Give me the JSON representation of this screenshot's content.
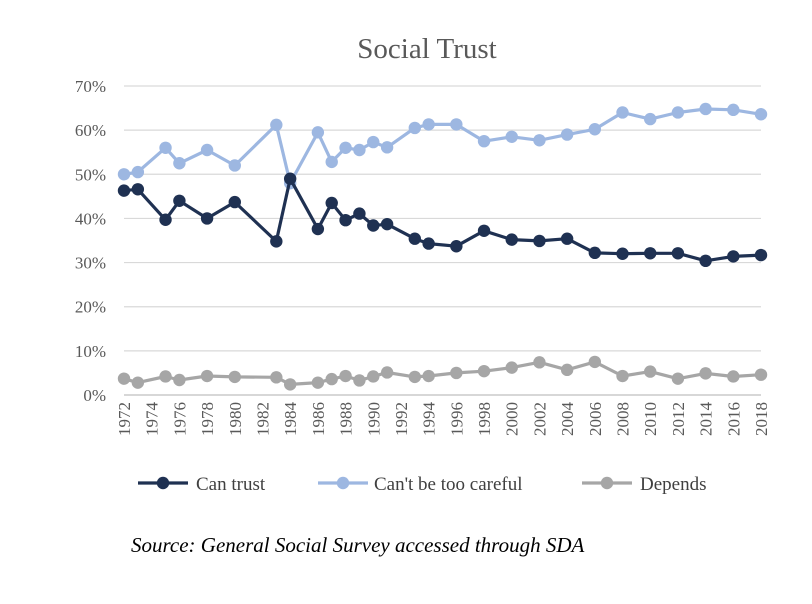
{
  "chart_data": {
    "type": "line",
    "title": "Social Trust",
    "xlabel": "",
    "ylabel": "",
    "x_ticks": [
      "1972",
      "1974",
      "1976",
      "1978",
      "1980",
      "1982",
      "1984",
      "1986",
      "1988",
      "1990",
      "1992",
      "1994",
      "1996",
      "1998",
      "2000",
      "2002",
      "2004",
      "2006",
      "2008",
      "2010",
      "2012",
      "2014",
      "2016",
      "2018"
    ],
    "x_range": [
      1972,
      2018
    ],
    "y_ticks": [
      "0%",
      "10%",
      "20%",
      "30%",
      "40%",
      "50%",
      "60%",
      "70%"
    ],
    "ylim": [
      0,
      70
    ],
    "grid": "horizontal",
    "legend_position": "bottom",
    "x": [
      1972,
      1973,
      1975,
      1976,
      1978,
      1980,
      1983,
      1984,
      1986,
      1987,
      1988,
      1989,
      1990,
      1991,
      1993,
      1994,
      1996,
      1998,
      2000,
      2002,
      2004,
      2006,
      2008,
      2010,
      2012,
      2014,
      2016,
      2018
    ],
    "series": [
      {
        "name": "Can trust",
        "color": "#1f3152",
        "values": [
          46.3,
          46.6,
          39.7,
          44.0,
          40.0,
          43.7,
          34.8,
          49.0,
          37.6,
          43.5,
          39.6,
          41.1,
          38.4,
          38.7,
          35.4,
          34.3,
          33.7,
          37.2,
          35.2,
          34.9,
          35.4,
          32.2,
          32.0,
          32.1,
          32.1,
          30.4,
          31.4,
          31.7
        ]
      },
      {
        "name": "Can't be too careful",
        "color": "#9db7e1",
        "values": [
          50.0,
          50.5,
          56.0,
          52.5,
          55.5,
          52.0,
          61.2,
          48.0,
          59.5,
          52.8,
          56.0,
          55.5,
          57.3,
          56.1,
          60.5,
          61.3,
          61.3,
          57.5,
          58.5,
          57.7,
          59.0,
          60.2,
          64.0,
          62.5,
          64.0,
          64.8,
          64.6,
          63.6
        ]
      },
      {
        "name": "Depends",
        "color": "#a6a6a6",
        "values": [
          3.7,
          2.8,
          4.2,
          3.4,
          4.3,
          4.1,
          4.0,
          2.4,
          2.8,
          3.6,
          4.3,
          3.3,
          4.2,
          5.1,
          4.1,
          4.3,
          5.0,
          5.4,
          6.2,
          7.4,
          5.7,
          7.5,
          4.3,
          5.3,
          3.7,
          4.9,
          4.2,
          4.6
        ]
      }
    ]
  },
  "source_note": "Source: General Social Survey accessed through SDA"
}
